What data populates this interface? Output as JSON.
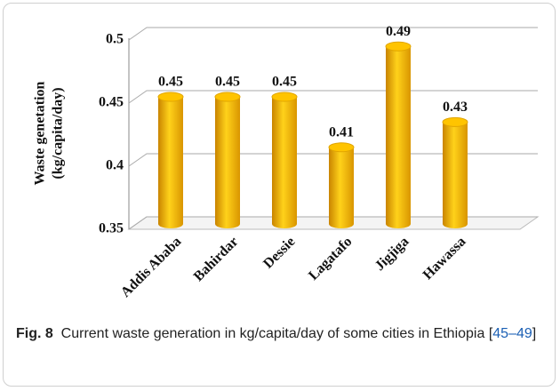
{
  "chart_data": {
    "type": "bar",
    "ylabel": [
      "Waste genetation",
      "(kg/capita/day)"
    ],
    "categories": [
      "Addis Ababa",
      "Bahirdar",
      "Dessie",
      "Lagatafo",
      "Jigjiga",
      "Hawassa"
    ],
    "values": [
      0.45,
      0.45,
      0.45,
      0.41,
      0.49,
      0.43
    ],
    "color": "#f5b800",
    "ylim": [
      0.35,
      0.5
    ],
    "yticks": [
      0.35,
      0.4,
      0.45,
      0.5
    ],
    "grid": true
  },
  "caption": {
    "label": "Fig. 8",
    "text": "Current waste generation in kg/capita/day of some cities in Ethiopia [",
    "ref": "45–49",
    "end": "]"
  }
}
